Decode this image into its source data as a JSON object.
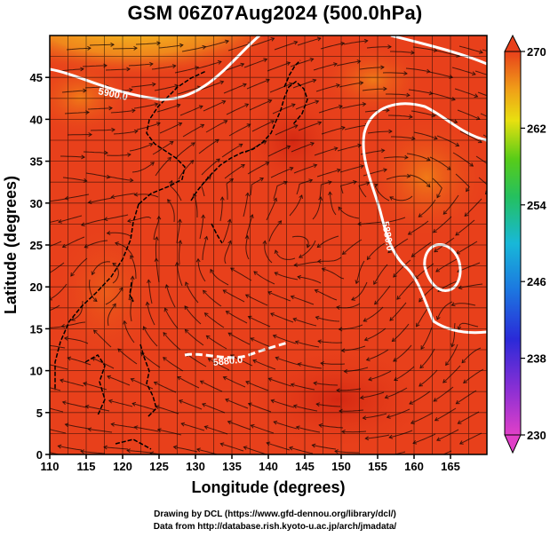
{
  "title": "GSM 06Z07Aug2024 (500.0hPa)",
  "map": {
    "xlabel": "Longitude (degrees)",
    "ylabel": "Latitude (degrees)",
    "lon_range": [
      110,
      170
    ],
    "lat_range": [
      0,
      50
    ],
    "lon_ticks": [
      110,
      115,
      120,
      125,
      130,
      135,
      140,
      145,
      150,
      155,
      160,
      165
    ],
    "lat_ticks": [
      0,
      5,
      10,
      15,
      20,
      25,
      30,
      35,
      40,
      45
    ],
    "grid_step_deg": 2.5,
    "contour_labels": [
      "5900.0",
      "5880.0",
      "5880.0"
    ]
  },
  "colorbar": {
    "ticks": [
      270,
      262,
      254,
      246,
      238,
      230
    ],
    "min": 230,
    "max": 270
  },
  "colors": {
    "field_dominant": "#e8401b",
    "field_warm_edge": "#f07a18",
    "field_cool_edge": "#f5b020",
    "contour": "#ffffff"
  },
  "credits": {
    "line1": "Drawing by DCL (https://www.gfd-dennou.org/library/dcl/)",
    "line2": "Data from http://database.rish.kyoto-u.ac.jp/arch/jmadata/"
  }
}
